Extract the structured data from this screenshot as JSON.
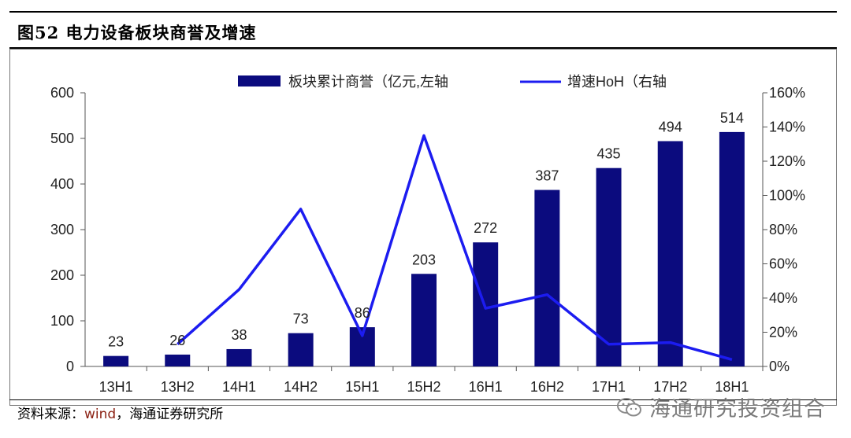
{
  "title": "图52 电力设备板块商誉及增速",
  "source": {
    "prefix": "资料来源：",
    "wind": "wind",
    "suffix": "，海通证券研究所"
  },
  "watermark": "海通研究投资组合",
  "chart_data": {
    "type": "bar",
    "categories": [
      "13H1",
      "13H2",
      "14H1",
      "14H2",
      "15H1",
      "15H2",
      "16H1",
      "16H2",
      "17H1",
      "17H2",
      "18H1"
    ],
    "series": [
      {
        "name": "板块累计商誉（亿元,左轴",
        "kind": "bar",
        "axis": "left",
        "color": "#0b0b7e",
        "values": [
          23,
          26,
          38,
          73,
          86,
          203,
          272,
          387,
          435,
          494,
          514
        ]
      },
      {
        "name": "增速HoH（右轴",
        "kind": "line",
        "axis": "right",
        "color": "#1c1cf0",
        "values": [
          null,
          0.13,
          0.45,
          0.92,
          0.18,
          1.35,
          0.34,
          0.42,
          0.13,
          0.14,
          0.04
        ]
      }
    ],
    "y_left": {
      "min": 0,
      "max": 600,
      "ticks": [
        "0",
        "100",
        "200",
        "300",
        "400",
        "500",
        "600"
      ]
    },
    "y_right": {
      "min": 0,
      "max": 1.6,
      "ticks": [
        "0%",
        "20%",
        "40%",
        "60%",
        "80%",
        "100%",
        "120%",
        "140%",
        "160%"
      ]
    },
    "legend_position": "top",
    "grid": false
  }
}
